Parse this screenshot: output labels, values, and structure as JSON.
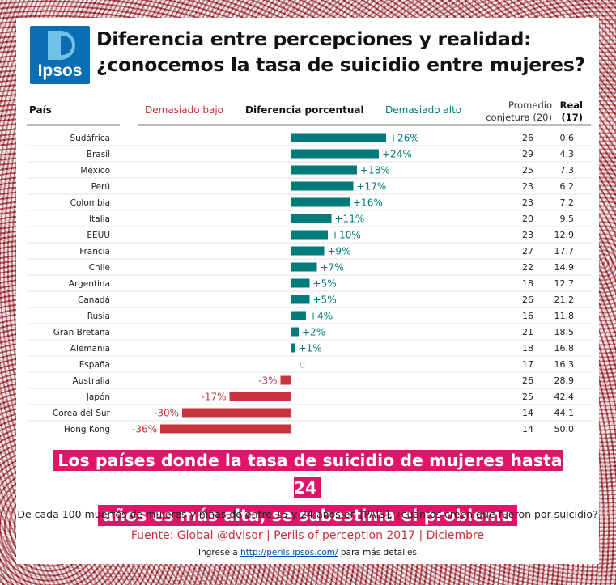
{
  "logo": {
    "text": "Ipsos"
  },
  "title": {
    "line1": "Diferencia entre percepciones y realidad:",
    "line2": "¿conocemos la tasa de suicidio entre mujeres?"
  },
  "colors": {
    "positive": "#007a7a",
    "negative": "#c8333d",
    "zero": "#bbbbbb",
    "highlight": "#e0156a"
  },
  "chart_data": {
    "type": "bar",
    "title": "Diferencia porcentual",
    "headers": {
      "country": "País",
      "low": "Demasiado bajo",
      "diff": "Diferencia porcentual",
      "high": "Demasiado alto",
      "guess_line1": "Promedio",
      "guess_line2": "conjetura (20)",
      "real_line1": "Real",
      "real_line2": "(17)"
    },
    "xlim": [
      -36,
      26
    ],
    "rows": [
      {
        "country": "Sudáfrica",
        "diff": 26,
        "label": "+26%",
        "guess": "26",
        "real": "0.6"
      },
      {
        "country": "Brasil",
        "diff": 24,
        "label": "+24%",
        "guess": "29",
        "real": "4.3"
      },
      {
        "country": "México",
        "diff": 18,
        "label": "+18%",
        "guess": "25",
        "real": "7.3"
      },
      {
        "country": "Perú",
        "diff": 17,
        "label": "+17%",
        "guess": "23",
        "real": "6.2"
      },
      {
        "country": "Colombia",
        "diff": 16,
        "label": "+16%",
        "guess": "23",
        "real": "7.2"
      },
      {
        "country": "Italia",
        "diff": 11,
        "label": "+11%",
        "guess": "20",
        "real": "9.5"
      },
      {
        "country": "EEUU",
        "diff": 10,
        "label": "+10%",
        "guess": "23",
        "real": "12.9"
      },
      {
        "country": "Francia",
        "diff": 9,
        "label": "+9%",
        "guess": "27",
        "real": "17.7"
      },
      {
        "country": "Chile",
        "diff": 7,
        "label": "+7%",
        "guess": "22",
        "real": "14.9"
      },
      {
        "country": "Argentina",
        "diff": 5,
        "label": "+5%",
        "guess": "18",
        "real": "12.7"
      },
      {
        "country": "Canadá",
        "diff": 5,
        "label": "+5%",
        "guess": "26",
        "real": "21.2"
      },
      {
        "country": "Rusia",
        "diff": 4,
        "label": "+4%",
        "guess": "16",
        "real": "11.8"
      },
      {
        "country": "Gran Bretaña",
        "diff": 2,
        "label": "+2%",
        "guess": "21",
        "real": "18.5"
      },
      {
        "country": "Alemania",
        "diff": 1,
        "label": "+1%",
        "guess": "18",
        "real": "16.8"
      },
      {
        "country": "España",
        "diff": 0,
        "label": "0",
        "guess": "17",
        "real": "16.3"
      },
      {
        "country": "Australia",
        "diff": -3,
        "label": "-3%",
        "guess": "26",
        "real": "28.9"
      },
      {
        "country": "Japón",
        "diff": -17,
        "label": "-17%",
        "guess": "25",
        "real": "42.4"
      },
      {
        "country": "Corea del Sur",
        "diff": -30,
        "label": "-30%",
        "guess": "14",
        "real": "44.1"
      },
      {
        "country": "Hong Kong",
        "diff": -36,
        "label": "-36%",
        "guess": "14",
        "real": "50.0"
      }
    ]
  },
  "headline": {
    "line1": "Los países donde la tasa de suicidio de mujeres hasta 24",
    "line2": "años es más alta, se subestima el problema"
  },
  "question": "De cada 100 muertes de mujeres y niñas de entre 15 y 24 años en [PAÍS], ¿cuántos creen que fueron por suicidio?",
  "source": "Fuente: Global @dvisor | Perils of perception 2017 | Diciembre",
  "more": {
    "prefix": "Ingrese a",
    "link": "http://perils.ipsos.com/",
    "suffix": "para más detalles"
  }
}
